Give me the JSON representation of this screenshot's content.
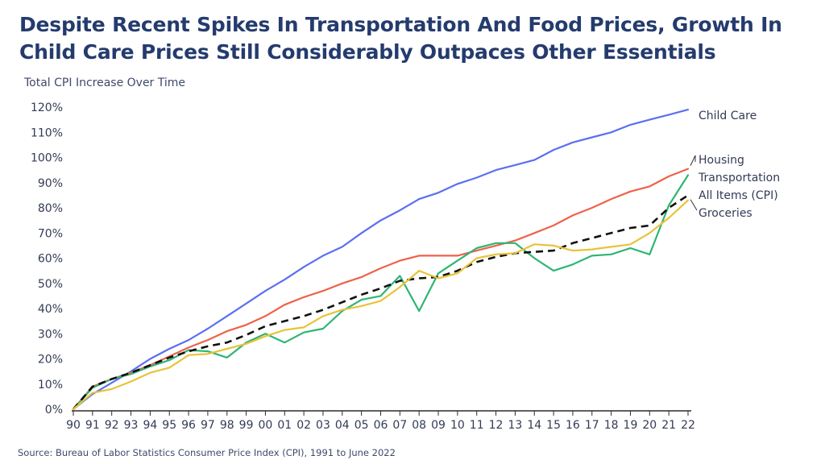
{
  "title": "Despite Recent Spikes In Transportation And Food Prices, Growth In Child Care Prices Still Considerably Outpaces Other Essentials",
  "source": "Source: Bureau of Labor Statistics Consumer Price Index (CPI), 1991 to June 2022",
  "colors": {
    "title": "#243b6e",
    "child_care": "#5b6ff0",
    "housing": "#f0614a",
    "transportation": "#2fb574",
    "all_items": "#111111",
    "groceries": "#e8c33a",
    "axis": "#2b2b2b"
  },
  "chart_data": {
    "type": "line",
    "title": "Despite Recent Spikes In Transportation And Food Prices, Growth In Child Care Prices Still Considerably Outpaces Other Essentials",
    "xlabel": "",
    "ylabel": "Total CPI Increase Over Time",
    "ylim": [
      0,
      120
    ],
    "y_ticks": [
      "0%",
      "10%",
      "20%",
      "30%",
      "40%",
      "50%",
      "60%",
      "70%",
      "80%",
      "90%",
      "100%",
      "110%",
      "120%"
    ],
    "x": [
      "90",
      "91",
      "92",
      "93",
      "94",
      "95",
      "96",
      "97",
      "98",
      "99",
      "00",
      "01",
      "02",
      "03",
      "04",
      "05",
      "06",
      "07",
      "08",
      "09",
      "10",
      "11",
      "12",
      "13",
      "14",
      "15",
      "16",
      "17",
      "18",
      "19",
      "20",
      "21",
      "22"
    ],
    "grid": false,
    "legend": "direct labels at right end of lines",
    "series": [
      {
        "name": "Child Care",
        "color": "#5b6ff0",
        "dashed": false,
        "values": [
          0,
          6,
          10.5,
          15,
          20,
          24,
          27.5,
          32,
          37,
          42,
          47,
          51.5,
          56.5,
          61,
          64.5,
          70,
          75,
          79,
          83.5,
          86,
          89.5,
          92,
          95,
          97,
          99,
          103,
          106,
          108,
          110,
          113,
          115,
          117,
          119
        ]
      },
      {
        "name": "Housing",
        "color": "#f0614a",
        "dashed": false,
        "values": [
          0,
          9,
          12,
          14.5,
          17.5,
          21,
          24.5,
          27.5,
          31,
          33.5,
          37,
          41.5,
          44.5,
          47,
          50,
          52.5,
          56,
          59,
          61,
          61,
          61,
          63,
          65,
          67,
          70,
          73,
          77,
          80,
          83.5,
          86.5,
          88.5,
          92.5,
          95.5
        ]
      },
      {
        "name": "Transportation",
        "color": "#2fb574",
        "dashed": false,
        "values": [
          0,
          8.5,
          12,
          14,
          17,
          19.5,
          23.5,
          23,
          20.5,
          26.5,
          30,
          26.5,
          30.5,
          32,
          39,
          43.5,
          45,
          53,
          39,
          54,
          59,
          64,
          66,
          66,
          60,
          55,
          57.5,
          61,
          61.5,
          64,
          61.5,
          81,
          93
        ]
      },
      {
        "name": "All Items (CPI)",
        "color": "#111111",
        "dashed": true,
        "values": [
          0,
          9,
          12,
          14.5,
          17.5,
          20.5,
          23,
          25,
          26.5,
          29.5,
          33,
          35,
          37,
          39.5,
          42.5,
          45.5,
          48,
          51,
          52,
          52.5,
          55,
          58.5,
          60.5,
          62,
          62.5,
          63,
          66,
          68,
          70,
          72,
          73,
          80,
          85
        ]
      },
      {
        "name": "Groceries",
        "color": "#e8c33a",
        "dashed": false,
        "values": [
          0,
          6.5,
          8,
          11,
          14.5,
          16.5,
          21.5,
          22,
          24,
          26,
          29,
          31.5,
          32.5,
          37,
          39.5,
          41,
          43,
          48.5,
          55,
          52,
          54,
          60,
          61.5,
          62,
          65.5,
          65,
          63,
          63.5,
          64.5,
          65.5,
          70,
          76,
          83
        ]
      }
    ]
  }
}
